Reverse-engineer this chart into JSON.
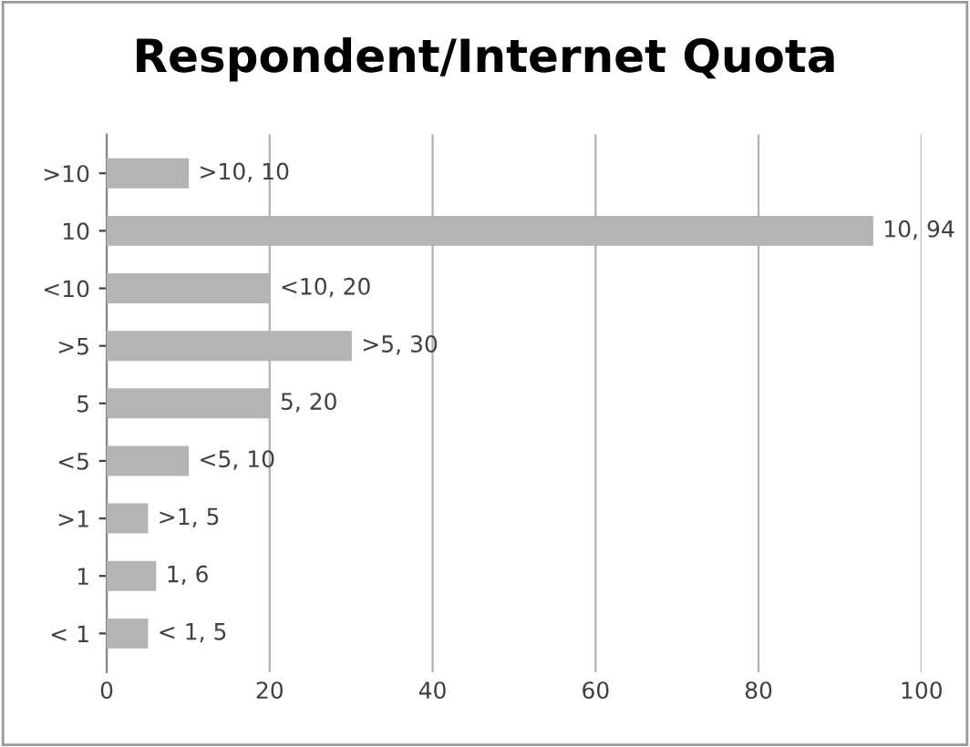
{
  "chart_data": {
    "type": "bar",
    "orientation": "horizontal",
    "title": "Respondent/Internet Quota",
    "categories": [
      ">10",
      "10",
      "<10",
      ">5",
      "5",
      "<5",
      ">1",
      "1",
      "< 1"
    ],
    "values": [
      10,
      94,
      20,
      30,
      20,
      10,
      5,
      6,
      5
    ],
    "value_labels": [
      ">10, 10",
      "10, 94",
      "<10, 20",
      ">5, 30",
      "5, 20",
      "<5, 10",
      ">1, 5",
      "1, 6",
      "< 1, 5"
    ],
    "color": "#b4b4b4",
    "xlim": [
      0,
      100
    ],
    "xticks": [
      0,
      20,
      40,
      60,
      80,
      100
    ],
    "grid": "x"
  }
}
